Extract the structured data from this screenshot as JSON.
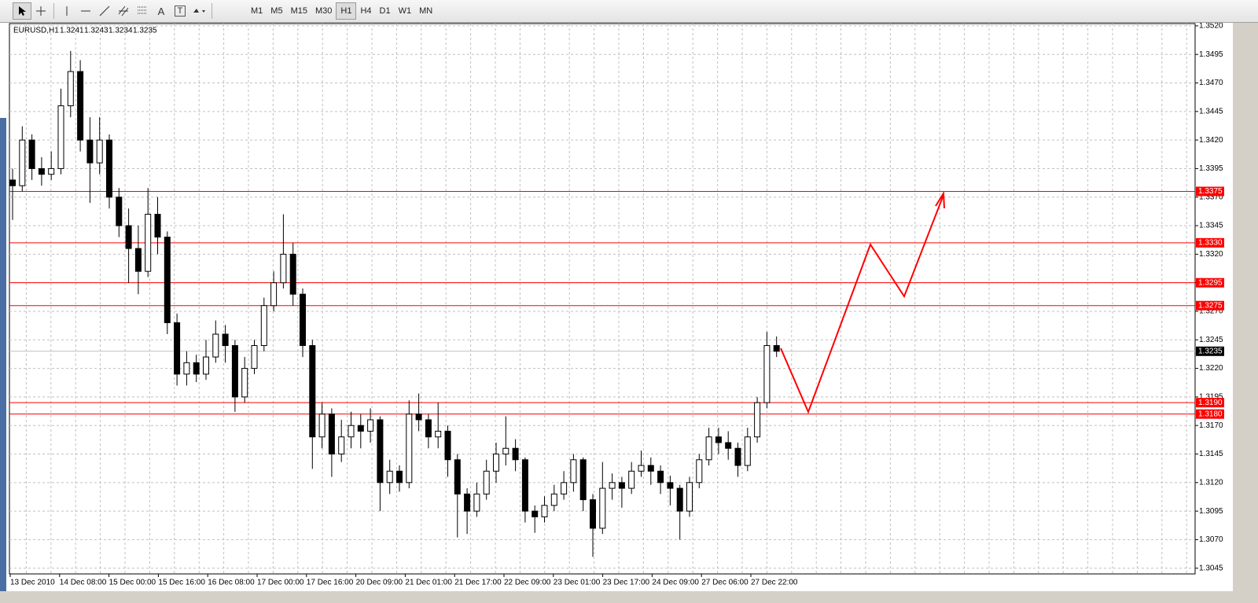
{
  "toolbar": {
    "text_tools": [
      "A",
      "T"
    ],
    "timeframes": [
      "M1",
      "M5",
      "M15",
      "M30",
      "H1",
      "H4",
      "D1",
      "W1",
      "MN"
    ],
    "active_timeframe": "H1"
  },
  "chart_data": {
    "type": "candlestick",
    "symbol": "EURUSD,H1",
    "header_ohlc": [
      1.3241,
      1.3243,
      1.3234,
      1.3235
    ],
    "up_color": "#ffffff",
    "down_color": "#000000",
    "wick_color": "#000000",
    "level_color": "#ff0000",
    "ylim": [
      1.304,
      1.3522
    ],
    "yticks": [
      1.3045,
      {
        "value": 1.307,
        "label": "1.3070"
      },
      1.3095,
      {
        "value": 1.312,
        "label": "1.3120"
      },
      1.3145,
      {
        "value": 1.317,
        "label": "1.3170"
      },
      1.3195,
      {
        "value": 1.322,
        "label": "1.3220"
      },
      1.3245,
      {
        "value": 1.327,
        "label": "1.3270"
      },
      1.3295,
      {
        "value": 1.332,
        "label": "1.3320"
      },
      1.3345,
      {
        "value": 1.337,
        "label": "1.3370"
      },
      1.3395,
      {
        "value": 1.342,
        "label": "1.3420"
      },
      1.3445,
      {
        "value": 1.347,
        "label": "1.3470"
      },
      1.3495,
      {
        "value": 1.352,
        "label": "1.3520"
      }
    ],
    "grid": true,
    "levels": [
      1.3375,
      {
        "value": 1.333,
        "label": "1.3330"
      },
      1.3295,
      1.3275,
      {
        "value": 1.319,
        "label": "1.3190"
      },
      {
        "value": 1.318,
        "label": "1.3180"
      }
    ],
    "current_price": 1.3235,
    "xlabels": [
      "13 Dec 2010",
      "14 Dec 08:00",
      "15 Dec 00:00",
      "15 Dec 16:00",
      "16 Dec 08:00",
      "17 Dec 00:00",
      "17 Dec 16:00",
      "20 Dec 09:00",
      "21 Dec 01:00",
      "21 Dec 17:00",
      "22 Dec 09:00",
      "23 Dec 01:00",
      "23 Dec 17:00",
      "24 Dec 09:00",
      "27 Dec 06:00",
      "27 Dec 22:00"
    ],
    "candles": [
      [
        1.3385,
        1.3395,
        1.335,
        1.338
      ],
      [
        1.338,
        1.3432,
        1.3375,
        1.342
      ],
      [
        1.342,
        1.3425,
        1.3385,
        1.3395
      ],
      [
        1.3395,
        1.3405,
        1.338,
        1.339
      ],
      [
        1.339,
        1.341,
        1.3385,
        1.3395
      ],
      [
        1.3395,
        1.3465,
        1.339,
        1.345
      ],
      [
        1.345,
        1.3498,
        1.344,
        1.348
      ],
      [
        1.348,
        1.349,
        1.341,
        1.342
      ],
      [
        1.342,
        1.344,
        1.3365,
        1.34
      ],
      [
        1.34,
        1.344,
        1.339,
        1.342
      ],
      [
        1.342,
        1.3425,
        1.336,
        1.337
      ],
      [
        1.337,
        1.3378,
        1.3335,
        1.3345
      ],
      [
        1.3345,
        1.336,
        1.3295,
        1.3325
      ],
      [
        1.3325,
        1.3345,
        1.3285,
        1.3305
      ],
      [
        1.3305,
        1.3378,
        1.33,
        1.3355
      ],
      [
        1.3355,
        1.337,
        1.332,
        1.3335
      ],
      [
        1.3335,
        1.334,
        1.325,
        1.326
      ],
      [
        1.326,
        1.3268,
        1.3205,
        1.3215
      ],
      [
        1.3215,
        1.3235,
        1.3205,
        1.3225
      ],
      [
        1.3225,
        1.3232,
        1.3208,
        1.3215
      ],
      [
        1.3215,
        1.3245,
        1.321,
        1.323
      ],
      [
        1.323,
        1.3262,
        1.3225,
        1.325
      ],
      [
        1.325,
        1.3258,
        1.3225,
        1.324
      ],
      [
        1.324,
        1.3245,
        1.3182,
        1.3195
      ],
      [
        1.3195,
        1.323,
        1.319,
        1.322
      ],
      [
        1.322,
        1.3245,
        1.3215,
        1.324
      ],
      [
        1.324,
        1.3282,
        1.3235,
        1.3275
      ],
      [
        1.3275,
        1.3305,
        1.327,
        1.3295
      ],
      [
        1.3295,
        1.3355,
        1.329,
        1.332
      ],
      [
        1.332,
        1.333,
        1.3275,
        1.3285
      ],
      [
        1.3285,
        1.329,
        1.323,
        1.324
      ],
      [
        1.324,
        1.3245,
        1.3132,
        1.316
      ],
      [
        1.316,
        1.319,
        1.315,
        1.318
      ],
      [
        1.318,
        1.3185,
        1.3125,
        1.3145
      ],
      [
        1.3145,
        1.3175,
        1.3138,
        1.316
      ],
      [
        1.316,
        1.3182,
        1.315,
        1.317
      ],
      [
        1.317,
        1.318,
        1.315,
        1.3165
      ],
      [
        1.3165,
        1.3185,
        1.3155,
        1.3175
      ],
      [
        1.3175,
        1.3178,
        1.3095,
        1.312
      ],
      [
        1.312,
        1.314,
        1.311,
        1.313
      ],
      [
        1.313,
        1.3135,
        1.3112,
        1.312
      ],
      [
        1.312,
        1.3192,
        1.3115,
        1.318
      ],
      [
        1.318,
        1.3198,
        1.3165,
        1.3175
      ],
      [
        1.3175,
        1.318,
        1.315,
        1.316
      ],
      [
        1.316,
        1.319,
        1.315,
        1.3165
      ],
      [
        1.3165,
        1.317,
        1.3125,
        1.314
      ],
      [
        1.314,
        1.3145,
        1.3072,
        1.311
      ],
      [
        1.311,
        1.3115,
        1.3075,
        1.3095
      ],
      [
        1.3095,
        1.312,
        1.309,
        1.311
      ],
      [
        1.311,
        1.314,
        1.3105,
        1.313
      ],
      [
        1.313,
        1.3155,
        1.312,
        1.3145
      ],
      [
        1.3145,
        1.3178,
        1.3135,
        1.315
      ],
      [
        1.315,
        1.3158,
        1.313,
        1.314
      ],
      [
        1.314,
        1.3142,
        1.3085,
        1.3095
      ],
      [
        1.3095,
        1.31,
        1.3076,
        1.309
      ],
      [
        1.309,
        1.3108,
        1.3085,
        1.31
      ],
      [
        1.31,
        1.3118,
        1.3095,
        1.311
      ],
      [
        1.311,
        1.313,
        1.3105,
        1.312
      ],
      [
        1.312,
        1.3145,
        1.3112,
        1.314
      ],
      [
        1.314,
        1.3142,
        1.3095,
        1.3105
      ],
      [
        1.3105,
        1.311,
        1.3055,
        1.308
      ],
      [
        1.308,
        1.3138,
        1.3075,
        1.3115
      ],
      [
        1.3115,
        1.3128,
        1.3105,
        1.312
      ],
      [
        1.312,
        1.3125,
        1.3098,
        1.3115
      ],
      [
        1.3115,
        1.3138,
        1.311,
        1.313
      ],
      [
        1.313,
        1.3148,
        1.3125,
        1.3135
      ],
      [
        1.3135,
        1.3142,
        1.3118,
        1.313
      ],
      [
        1.313,
        1.3135,
        1.311,
        1.312
      ],
      [
        1.312,
        1.3126,
        1.31,
        1.3115
      ],
      [
        1.3115,
        1.3118,
        1.307,
        1.3095
      ],
      [
        1.3095,
        1.3125,
        1.309,
        1.312
      ],
      [
        1.312,
        1.3145,
        1.3115,
        1.314
      ],
      [
        1.314,
        1.3168,
        1.3135,
        1.316
      ],
      [
        1.316,
        1.3168,
        1.3145,
        1.3155
      ],
      [
        1.3155,
        1.3165,
        1.314,
        1.315
      ],
      [
        1.315,
        1.3155,
        1.3125,
        1.3135
      ],
      [
        1.3135,
        1.3168,
        1.313,
        1.316
      ],
      [
        1.316,
        1.3195,
        1.3155,
        1.319
      ],
      [
        1.319,
        1.3252,
        1.3185,
        1.324
      ],
      [
        1.324,
        1.3248,
        1.323,
        1.3235
      ]
    ]
  }
}
